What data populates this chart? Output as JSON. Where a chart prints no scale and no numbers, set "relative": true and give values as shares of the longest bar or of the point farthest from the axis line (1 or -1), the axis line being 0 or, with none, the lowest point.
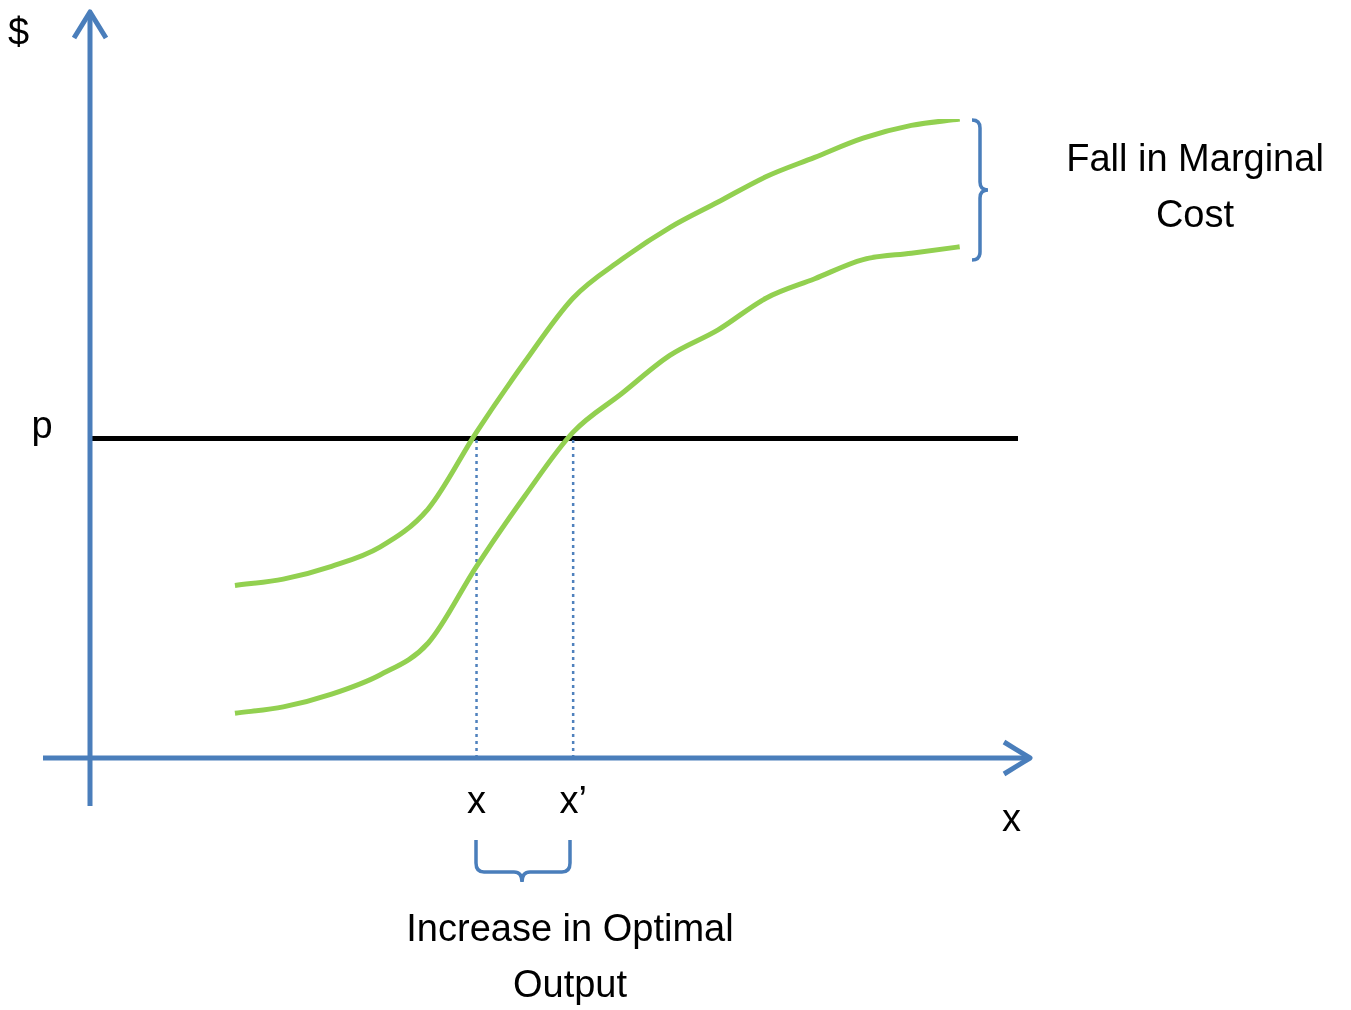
{
  "chart_data": {
    "type": "line",
    "relative": true,
    "xlabel": "x",
    "ylabel": "$",
    "categories": [
      null,
      null,
      null,
      null,
      null,
      null,
      null,
      null,
      "x",
      null,
      "x’",
      null,
      null,
      null,
      null,
      null,
      null,
      null,
      null,
      null
    ],
    "series": [
      {
        "color": "#92d050",
        "values": [
          null,
          null,
          null,
          0.27,
          0.28,
          0.3,
          0.33,
          0.39,
          0.51,
          0.62,
          0.72,
          0.78,
          0.83,
          0.87,
          0.91,
          0.94,
          0.97,
          0.99,
          1,
          null
        ]
      },
      {
        "color": "#92d050",
        "values": [
          null,
          null,
          null,
          0.07,
          0.08,
          0.1,
          0.13,
          0.18,
          0.3,
          0.41,
          0.51,
          0.57,
          0.63,
          0.67,
          0.72,
          0.75,
          0.78,
          0.79,
          0.8,
          null
        ]
      }
    ],
    "ref_lines": [
      {
        "axis": "y",
        "value": 0.5,
        "label": "p",
        "color": "#000000"
      },
      {
        "axis": "x",
        "value": "x",
        "color": "#4f81bd",
        "line_style": "dotted"
      },
      {
        "axis": "x",
        "value": "x’",
        "color": "#4f81bd",
        "line_style": "dotted"
      }
    ],
    "annotations": [
      "Fall in Marginal Cost",
      "Increase in Optimal Output"
    ],
    "grid": false,
    "legend": false
  }
}
